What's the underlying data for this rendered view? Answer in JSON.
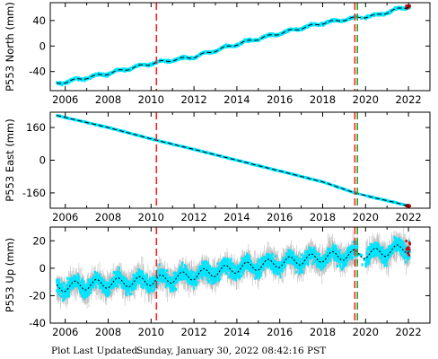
{
  "footer": {
    "label": "Plot Last Updated:",
    "timestamp": "Sunday, January 30, 2022 08:42:16 PST"
  },
  "colors": {
    "data": "#00e5ff",
    "error_bar": "#bdbdbd",
    "model": "#000000",
    "event_red": "#ff2020",
    "event_green": "#22aa22",
    "recent_points": "#dd0000"
  },
  "chart_data": [
    {
      "type": "scatter",
      "ylabel": "P553 North (mm)",
      "xlim": [
        2005.3,
        2023.0
      ],
      "ylim": [
        -70,
        68
      ],
      "xticks": [
        2006,
        2008,
        2010,
        2012,
        2014,
        2016,
        2018,
        2020,
        2022
      ],
      "yticks": [
        -40,
        0,
        40
      ],
      "series": [
        {
          "values": [
            [
              2005.6,
              -59
            ],
            [
              2008.0,
              -43
            ],
            [
              2010.2,
              -26
            ],
            [
              2012.0,
              -17
            ],
            [
              2014.0,
              3
            ],
            [
              2016.0,
              20
            ],
            [
              2018.0,
              36
            ],
            [
              2019.5,
              44
            ],
            [
              2020.5,
              48
            ],
            [
              2021.3,
              56
            ],
            [
              2022.0,
              62
            ]
          ]
        }
      ],
      "event_lines": {
        "red": [
          2010.25,
          2019.5
        ],
        "green": [
          2019.62
        ]
      }
    },
    {
      "type": "scatter",
      "ylabel": "P553 East (mm)",
      "xlim": [
        2005.3,
        2023.0
      ],
      "ylim": [
        -235,
        235
      ],
      "xticks": [
        2006,
        2008,
        2010,
        2012,
        2014,
        2016,
        2018,
        2020,
        2022
      ],
      "yticks": [
        -160,
        0,
        160
      ],
      "series": [
        {
          "values": [
            [
              2005.6,
              219
            ],
            [
              2008.0,
              160
            ],
            [
              2010.2,
              99
            ],
            [
              2012.0,
              53
            ],
            [
              2014.0,
              0
            ],
            [
              2016.0,
              -53
            ],
            [
              2018.0,
              -106
            ],
            [
              2019.5,
              -160
            ],
            [
              2020.5,
              -186
            ],
            [
              2021.3,
              -205
            ],
            [
              2022.0,
              -224
            ]
          ]
        }
      ],
      "event_lines": {
        "red": [
          2010.25,
          2019.5
        ],
        "green": [
          2019.62
        ]
      }
    },
    {
      "type": "scatter",
      "ylabel": "P553 Up (mm)",
      "xlim": [
        2005.3,
        2023.0
      ],
      "ylim": [
        -40,
        30
      ],
      "xticks": [
        2006,
        2008,
        2010,
        2012,
        2014,
        2016,
        2018,
        2020,
        2022
      ],
      "yticks": [
        -40,
        -20,
        0,
        20
      ],
      "series": [
        {
          "values": [
            [
              2005.6,
              -14
            ],
            [
              2008.0,
              -11
            ],
            [
              2010.2,
              -9
            ],
            [
              2012.0,
              -5
            ],
            [
              2014.0,
              0
            ],
            [
              2016.0,
              4
            ],
            [
              2018.0,
              8
            ],
            [
              2019.5,
              10
            ],
            [
              2020.5,
              11
            ],
            [
              2021.3,
              13
            ],
            [
              2022.0,
              15
            ]
          ]
        }
      ],
      "event_lines": {
        "red": [
          2010.25,
          2019.5
        ],
        "green": [
          2019.62
        ]
      }
    }
  ]
}
